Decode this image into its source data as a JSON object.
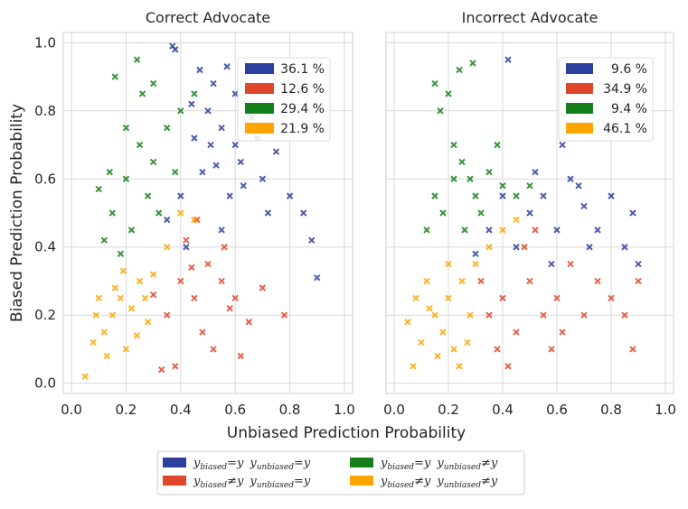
{
  "chart_data": {
    "type": "scatter",
    "xlabel": "Unbiased Prediction Probability",
    "ylabel": "Biased Prediction Probability",
    "xlim": [
      -0.03,
      1.03
    ],
    "ylim": [
      -0.03,
      1.03
    ],
    "xticks": [
      "0.0",
      "0.2",
      "0.4",
      "0.6",
      "0.8",
      "1.0"
    ],
    "yticks": [
      "0.0",
      "0.2",
      "0.4",
      "0.6",
      "0.8",
      "1.0"
    ],
    "grid": true,
    "categories": [
      {
        "key": "bb",
        "color": "#2e3f9e",
        "label": "y_biased = y   y_unbiased = y"
      },
      {
        "key": "rb",
        "color": "#e0462a",
        "label": "y_biased ≠ y   y_unbiased = y"
      },
      {
        "key": "gb",
        "color": "#15801b",
        "label": "y_biased = y   y_unbiased ≠ y"
      },
      {
        "key": "ob",
        "color": "#ffa500",
        "label": "y_biased ≠ y   y_unbiased ≠ y"
      }
    ],
    "bottom_legend": {
      "c1": {
        "yb": "biased",
        "op": "=",
        "yu": "unbiased",
        "op2": "="
      },
      "c2": {
        "yb": "biased",
        "op": "≠",
        "yu": "unbiased",
        "op2": "="
      },
      "c3": {
        "yb": "biased",
        "op": "=",
        "yu": "unbiased",
        "op2": "≠"
      },
      "c4": {
        "yb": "biased",
        "op": "≠",
        "yu": "unbiased",
        "op2": "≠"
      },
      "y": "y"
    },
    "panels": [
      {
        "title": "Correct Advocate",
        "percentages": [
          "36.1 %",
          "12.6 %",
          "29.4 %",
          "21.9 %"
        ],
        "series": [
          {
            "name": "bb",
            "values": [
              [
                0.5,
                0.8
              ],
              [
                0.55,
                0.75
              ],
              [
                0.6,
                0.7
              ],
              [
                0.45,
                0.72
              ],
              [
                0.52,
                0.88
              ],
              [
                0.62,
                0.65
              ],
              [
                0.7,
                0.6
              ],
              [
                0.58,
                0.55
              ],
              [
                0.48,
                0.62
              ],
              [
                0.4,
                0.55
              ],
              [
                0.66,
                0.78
              ],
              [
                0.72,
                0.5
              ],
              [
                0.35,
                0.48
              ],
              [
                0.42,
                0.4
              ],
              [
                0.55,
                0.45
              ],
              [
                0.8,
                0.55
              ],
              [
                0.75,
                0.68
              ],
              [
                0.85,
                0.5
              ],
              [
                0.9,
                0.31
              ],
              [
                0.88,
                0.42
              ],
              [
                0.6,
                0.85
              ],
              [
                0.37,
                0.99
              ],
              [
                0.38,
                0.98
              ],
              [
                0.47,
                0.92
              ],
              [
                0.53,
                0.64
              ],
              [
                0.44,
                0.82
              ],
              [
                0.68,
                0.72
              ],
              [
                0.57,
                0.93
              ],
              [
                0.63,
                0.58
              ],
              [
                0.51,
                0.7
              ]
            ]
          },
          {
            "name": "rb",
            "values": [
              [
                0.4,
                0.3
              ],
              [
                0.45,
                0.25
              ],
              [
                0.35,
                0.2
              ],
              [
                0.5,
                0.35
              ],
              [
                0.55,
                0.3
              ],
              [
                0.6,
                0.25
              ],
              [
                0.48,
                0.15
              ],
              [
                0.52,
                0.1
              ],
              [
                0.38,
                0.05
              ],
              [
                0.33,
                0.04
              ],
              [
                0.42,
                0.42
              ],
              [
                0.58,
                0.22
              ],
              [
                0.65,
                0.18
              ],
              [
                0.7,
                0.28
              ],
              [
                0.78,
                0.2
              ],
              [
                0.62,
                0.08
              ],
              [
                0.46,
                0.48
              ],
              [
                0.3,
                0.26
              ],
              [
                0.44,
                0.34
              ],
              [
                0.56,
                0.4
              ]
            ]
          },
          {
            "name": "gb",
            "values": [
              [
                0.2,
                0.6
              ],
              [
                0.25,
                0.7
              ],
              [
                0.3,
                0.65
              ],
              [
                0.35,
                0.75
              ],
              [
                0.15,
                0.5
              ],
              [
                0.22,
                0.45
              ],
              [
                0.28,
                0.55
              ],
              [
                0.4,
                0.8
              ],
              [
                0.45,
                0.85
              ],
              [
                0.18,
                0.38
              ],
              [
                0.12,
                0.42
              ],
              [
                0.26,
                0.85
              ],
              [
                0.16,
                0.9
              ],
              [
                0.24,
                0.95
              ],
              [
                0.1,
                0.57
              ],
              [
                0.32,
                0.5
              ],
              [
                0.38,
                0.62
              ],
              [
                0.14,
                0.62
              ],
              [
                0.3,
                0.88
              ],
              [
                0.2,
                0.75
              ]
            ]
          },
          {
            "name": "ob",
            "values": [
              [
                0.15,
                0.2
              ],
              [
                0.18,
                0.25
              ],
              [
                0.22,
                0.22
              ],
              [
                0.12,
                0.15
              ],
              [
                0.2,
                0.1
              ],
              [
                0.25,
                0.3
              ],
              [
                0.1,
                0.25
              ],
              [
                0.28,
                0.18
              ],
              [
                0.08,
                0.12
              ],
              [
                0.05,
                0.02
              ],
              [
                0.16,
                0.28
              ],
              [
                0.3,
                0.32
              ],
              [
                0.35,
                0.4
              ],
              [
                0.4,
                0.5
              ],
              [
                0.45,
                0.48
              ],
              [
                0.13,
                0.08
              ],
              [
                0.24,
                0.14
              ],
              [
                0.19,
                0.33
              ],
              [
                0.27,
                0.25
              ],
              [
                0.09,
                0.2
              ]
            ]
          }
        ]
      },
      {
        "title": "Incorrect Advocate",
        "percentages": [
          "9.6 %",
          "34.9 %",
          "9.4 %",
          "46.1 %"
        ],
        "series": [
          {
            "name": "bb",
            "values": [
              [
                0.5,
                0.5
              ],
              [
                0.55,
                0.55
              ],
              [
                0.6,
                0.45
              ],
              [
                0.65,
                0.6
              ],
              [
                0.7,
                0.52
              ],
              [
                0.45,
                0.4
              ],
              [
                0.75,
                0.45
              ],
              [
                0.8,
                0.55
              ],
              [
                0.85,
                0.4
              ],
              [
                0.9,
                0.35
              ],
              [
                0.4,
                0.55
              ],
              [
                0.35,
                0.45
              ],
              [
                0.3,
                0.38
              ],
              [
                0.62,
                0.7
              ],
              [
                0.68,
                0.58
              ],
              [
                0.88,
                0.5
              ],
              [
                0.42,
                0.95
              ],
              [
                0.58,
                0.35
              ],
              [
                0.72,
                0.4
              ],
              [
                0.52,
                0.62
              ]
            ]
          },
          {
            "name": "rb",
            "values": [
              [
                0.35,
                0.2
              ],
              [
                0.4,
                0.25
              ],
              [
                0.45,
                0.15
              ],
              [
                0.5,
                0.3
              ],
              [
                0.55,
                0.2
              ],
              [
                0.6,
                0.25
              ],
              [
                0.65,
                0.35
              ],
              [
                0.7,
                0.2
              ],
              [
                0.38,
                0.1
              ],
              [
                0.42,
                0.05
              ],
              [
                0.48,
                0.4
              ],
              [
                0.58,
                0.1
              ],
              [
                0.75,
                0.3
              ],
              [
                0.8,
                0.25
              ],
              [
                0.85,
                0.2
              ],
              [
                0.9,
                0.3
              ],
              [
                0.32,
                0.3
              ],
              [
                0.52,
                0.45
              ],
              [
                0.62,
                0.15
              ],
              [
                0.88,
                0.1
              ]
            ]
          },
          {
            "name": "gb",
            "values": [
              [
                0.15,
                0.88
              ],
              [
                0.17,
                0.8
              ],
              [
                0.2,
                0.85
              ],
              [
                0.22,
                0.7
              ],
              [
                0.25,
                0.65
              ],
              [
                0.28,
                0.6
              ],
              [
                0.3,
                0.55
              ],
              [
                0.18,
                0.5
              ],
              [
                0.12,
                0.45
              ],
              [
                0.35,
                0.62
              ],
              [
                0.4,
                0.58
              ],
              [
                0.45,
                0.55
              ],
              [
                0.22,
                0.6
              ],
              [
                0.32,
                0.5
              ],
              [
                0.26,
                0.45
              ],
              [
                0.15,
                0.55
              ],
              [
                0.29,
                0.94
              ],
              [
                0.24,
                0.92
              ],
              [
                0.38,
                0.7
              ],
              [
                0.5,
                0.58
              ]
            ]
          },
          {
            "name": "ob",
            "values": [
              [
                0.15,
                0.2
              ],
              [
                0.18,
                0.15
              ],
              [
                0.2,
                0.25
              ],
              [
                0.22,
                0.1
              ],
              [
                0.25,
                0.3
              ],
              [
                0.1,
                0.12
              ],
              [
                0.08,
                0.25
              ],
              [
                0.12,
                0.3
              ],
              [
                0.28,
                0.2
              ],
              [
                0.3,
                0.35
              ],
              [
                0.05,
                0.18
              ],
              [
                0.07,
                0.05
              ],
              [
                0.16,
                0.08
              ],
              [
                0.24,
                0.05
              ],
              [
                0.2,
                0.35
              ],
              [
                0.35,
                0.4
              ],
              [
                0.4,
                0.45
              ],
              [
                0.45,
                0.48
              ],
              [
                0.13,
                0.22
              ],
              [
                0.27,
                0.12
              ]
            ]
          }
        ]
      }
    ]
  }
}
